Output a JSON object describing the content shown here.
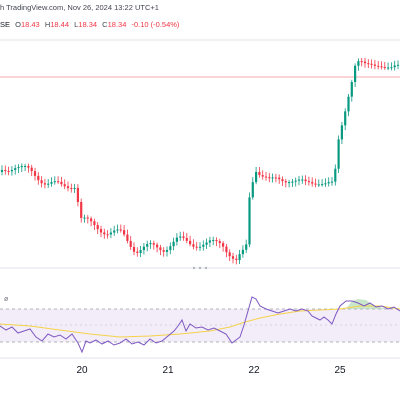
{
  "header": {
    "source_text": "h TradingView.com, Nov 26, 2024 13:22 UTC+1",
    "exchange_fragment": "SE",
    "ohlc": [
      {
        "key": "O",
        "value": "18.43"
      },
      {
        "key": "H",
        "value": "18.44"
      },
      {
        "key": "L",
        "value": "18.34"
      },
      {
        "key": "C",
        "value": "18.34"
      },
      {
        "key": "",
        "value": "-0.10 (-0.54%)"
      }
    ]
  },
  "rsi": {
    "label": "ø"
  },
  "x_axis": {
    "ticks": [
      {
        "label": "20",
        "x": 82
      },
      {
        "label": "21",
        "x": 168
      },
      {
        "label": "22",
        "x": 254
      },
      {
        "label": "25",
        "x": 340
      }
    ]
  },
  "colors": {
    "up": "#089981",
    "down": "#f23645",
    "rsi_line": "#7e57c2",
    "rsi_ma": "#f5d24a",
    "rsi_band": "#d1c4e9"
  },
  "icons": {
    "grip": "triple-dot-grip-icon"
  }
}
